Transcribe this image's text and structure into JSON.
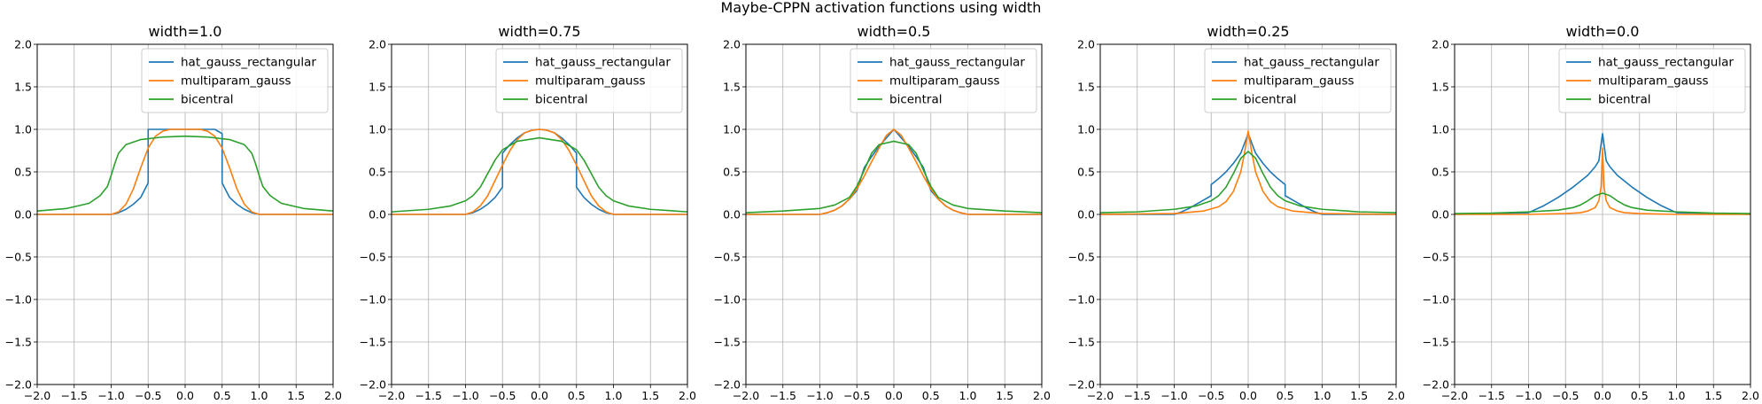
{
  "suptitle": "Maybe-CPPN activation functions using width",
  "colors": {
    "hat_gauss_rectangular": "#1f77b4",
    "multiparam_gauss": "#ff7f0e",
    "bicentral": "#2ca02c",
    "grid": "#b0b0b0",
    "axes": "#000000"
  },
  "chart_data": [
    {
      "type": "line",
      "title": "width=1.0",
      "xlim": [
        -2,
        2
      ],
      "ylim": [
        -2,
        2
      ],
      "xticks": [
        "−2.0",
        "−1.5",
        "−1.0",
        "−0.5",
        "0.0",
        "0.5",
        "1.0",
        "1.5",
        "2.0"
      ],
      "yticks": [
        "−2.0",
        "−1.5",
        "−1.0",
        "−0.5",
        "0.0",
        "0.5",
        "1.0",
        "1.5",
        "2.0"
      ],
      "grid": true,
      "legend": "top-right",
      "series": [
        {
          "name": "hat_gauss_rectangular",
          "x": [
            -2,
            -1.0,
            -0.9,
            -0.8,
            -0.7,
            -0.6,
            -0.5,
            -0.5,
            -0.4,
            -0.3,
            -0.2,
            -0.1,
            0,
            0.1,
            0.2,
            0.3,
            0.4,
            0.5,
            0.5,
            0.6,
            0.7,
            0.8,
            0.9,
            1.0,
            2
          ],
          "y": [
            0,
            0,
            0.02,
            0.06,
            0.12,
            0.2,
            0.37,
            1.0,
            1.0,
            1.0,
            1.0,
            1.0,
            1.0,
            1.0,
            1.0,
            1.0,
            1.0,
            0.95,
            0.37,
            0.2,
            0.12,
            0.06,
            0.02,
            0,
            0
          ]
        },
        {
          "name": "multiparam_gauss",
          "x": [
            -2,
            -1.0,
            -0.9,
            -0.8,
            -0.7,
            -0.6,
            -0.5,
            -0.4,
            -0.3,
            -0.2,
            -0.1,
            0,
            0.1,
            0.2,
            0.3,
            0.4,
            0.5,
            0.6,
            0.7,
            0.8,
            0.9,
            1.0,
            2
          ],
          "y": [
            0,
            0,
            0.03,
            0.12,
            0.3,
            0.55,
            0.78,
            0.92,
            0.98,
            1.0,
            1.0,
            1.0,
            1.0,
            1.0,
            0.98,
            0.92,
            0.78,
            0.55,
            0.3,
            0.12,
            0.03,
            0,
            0
          ]
        },
        {
          "name": "bicentral",
          "x": [
            -2,
            -1.6,
            -1.3,
            -1.15,
            -1.05,
            -1.0,
            -0.95,
            -0.9,
            -0.8,
            -0.6,
            -0.3,
            0,
            0.3,
            0.6,
            0.8,
            0.9,
            0.95,
            1.0,
            1.05,
            1.15,
            1.3,
            1.6,
            2
          ],
          "y": [
            0.04,
            0.07,
            0.13,
            0.22,
            0.33,
            0.46,
            0.6,
            0.72,
            0.82,
            0.88,
            0.91,
            0.92,
            0.91,
            0.88,
            0.82,
            0.72,
            0.6,
            0.46,
            0.33,
            0.22,
            0.13,
            0.07,
            0.04
          ]
        }
      ]
    },
    {
      "type": "line",
      "title": "width=0.75",
      "xlim": [
        -2,
        2
      ],
      "ylim": [
        -2,
        2
      ],
      "xticks": [
        "−2.0",
        "−1.5",
        "−1.0",
        "−0.5",
        "0.0",
        "0.5",
        "1.0",
        "1.5",
        "2.0"
      ],
      "yticks": [
        "−2.0",
        "−1.5",
        "−1.0",
        "−0.5",
        "0.0",
        "0.5",
        "1.0",
        "1.5",
        "2.0"
      ],
      "grid": true,
      "legend": "top-right",
      "series": [
        {
          "name": "hat_gauss_rectangular",
          "x": [
            -2,
            -1.0,
            -0.9,
            -0.8,
            -0.7,
            -0.6,
            -0.5,
            -0.5,
            -0.4,
            -0.3,
            -0.2,
            -0.1,
            0,
            0.1,
            0.2,
            0.3,
            0.4,
            0.5,
            0.5,
            0.6,
            0.7,
            0.8,
            0.9,
            1.0,
            2
          ],
          "y": [
            0,
            0,
            0.02,
            0.06,
            0.12,
            0.2,
            0.32,
            0.72,
            0.82,
            0.9,
            0.96,
            0.99,
            1.0,
            0.99,
            0.96,
            0.9,
            0.82,
            0.72,
            0.32,
            0.2,
            0.12,
            0.06,
            0.02,
            0,
            0
          ]
        },
        {
          "name": "multiparam_gauss",
          "x": [
            -2,
            -1.0,
            -0.9,
            -0.8,
            -0.7,
            -0.6,
            -0.5,
            -0.4,
            -0.3,
            -0.2,
            -0.1,
            0,
            0.1,
            0.2,
            0.3,
            0.4,
            0.5,
            0.6,
            0.7,
            0.8,
            0.9,
            1.0,
            2
          ],
          "y": [
            0,
            0,
            0.03,
            0.1,
            0.22,
            0.4,
            0.58,
            0.75,
            0.88,
            0.96,
            0.99,
            1.0,
            0.99,
            0.96,
            0.88,
            0.75,
            0.58,
            0.4,
            0.22,
            0.1,
            0.03,
            0,
            0
          ]
        },
        {
          "name": "bicentral",
          "x": [
            -2,
            -1.5,
            -1.2,
            -1.0,
            -0.9,
            -0.8,
            -0.7,
            -0.6,
            -0.5,
            -0.3,
            0,
            0.3,
            0.5,
            0.6,
            0.7,
            0.8,
            0.9,
            1.0,
            1.2,
            1.5,
            2
          ],
          "y": [
            0.03,
            0.06,
            0.1,
            0.16,
            0.22,
            0.32,
            0.48,
            0.64,
            0.76,
            0.86,
            0.9,
            0.86,
            0.76,
            0.64,
            0.48,
            0.32,
            0.22,
            0.16,
            0.1,
            0.06,
            0.03
          ]
        }
      ]
    },
    {
      "type": "line",
      "title": "width=0.5",
      "xlim": [
        -2,
        2
      ],
      "ylim": [
        -2,
        2
      ],
      "xticks": [
        "−2.0",
        "−1.5",
        "−1.0",
        "−0.5",
        "0.0",
        "0.5",
        "1.0",
        "1.5",
        "2.0"
      ],
      "yticks": [
        "−2.0",
        "−1.5",
        "−1.0",
        "−0.5",
        "0.0",
        "0.5",
        "1.0",
        "1.5",
        "2.0"
      ],
      "grid": true,
      "legend": "top-right",
      "series": [
        {
          "name": "hat_gauss_rectangular",
          "x": [
            -2,
            -1.0,
            -0.9,
            -0.8,
            -0.7,
            -0.6,
            -0.5,
            -0.4,
            -0.3,
            -0.2,
            -0.1,
            0,
            0.1,
            0.2,
            0.3,
            0.4,
            0.5,
            0.6,
            0.7,
            0.8,
            0.9,
            1.0,
            2
          ],
          "y": [
            0,
            0,
            0.02,
            0.05,
            0.1,
            0.18,
            0.28,
            0.55,
            0.68,
            0.8,
            0.9,
            1.0,
            0.9,
            0.8,
            0.68,
            0.55,
            0.28,
            0.18,
            0.1,
            0.05,
            0.02,
            0,
            0
          ]
        },
        {
          "name": "multiparam_gauss",
          "x": [
            -2,
            -1.0,
            -0.9,
            -0.8,
            -0.7,
            -0.6,
            -0.5,
            -0.4,
            -0.3,
            -0.2,
            -0.1,
            0,
            0.1,
            0.2,
            0.3,
            0.4,
            0.5,
            0.6,
            0.7,
            0.8,
            0.9,
            1.0,
            2
          ],
          "y": [
            0,
            0,
            0.02,
            0.05,
            0.1,
            0.18,
            0.3,
            0.45,
            0.62,
            0.78,
            0.93,
            1.0,
            0.93,
            0.78,
            0.62,
            0.45,
            0.3,
            0.18,
            0.1,
            0.05,
            0.02,
            0,
            0
          ]
        },
        {
          "name": "bicentral",
          "x": [
            -2,
            -1.5,
            -1.0,
            -0.8,
            -0.6,
            -0.5,
            -0.4,
            -0.3,
            -0.2,
            0,
            0.2,
            0.3,
            0.4,
            0.5,
            0.6,
            0.8,
            1.0,
            1.5,
            2
          ],
          "y": [
            0.02,
            0.04,
            0.07,
            0.11,
            0.2,
            0.33,
            0.52,
            0.72,
            0.82,
            0.86,
            0.82,
            0.72,
            0.52,
            0.33,
            0.2,
            0.11,
            0.07,
            0.04,
            0.02
          ]
        }
      ]
    },
    {
      "type": "line",
      "title": "width=0.25",
      "xlim": [
        -2,
        2
      ],
      "ylim": [
        -2,
        2
      ],
      "xticks": [
        "−2.0",
        "−1.5",
        "−1.0",
        "−0.5",
        "0.0",
        "0.5",
        "1.0",
        "1.5",
        "2.0"
      ],
      "yticks": [
        "−2.0",
        "−1.5",
        "−1.0",
        "−0.5",
        "0.0",
        "0.5",
        "1.0",
        "1.5",
        "2.0"
      ],
      "grid": true,
      "legend": "top-right",
      "series": [
        {
          "name": "hat_gauss_rectangular",
          "x": [
            -2,
            -1.0,
            -0.9,
            -0.8,
            -0.7,
            -0.6,
            -0.5,
            -0.5,
            -0.4,
            -0.3,
            -0.2,
            -0.1,
            0,
            0.1,
            0.2,
            0.3,
            0.4,
            0.5,
            0.5,
            0.6,
            0.7,
            0.8,
            0.9,
            1.0,
            2
          ],
          "y": [
            0,
            0,
            0.03,
            0.07,
            0.12,
            0.17,
            0.22,
            0.35,
            0.42,
            0.5,
            0.6,
            0.72,
            0.95,
            0.72,
            0.6,
            0.5,
            0.42,
            0.35,
            0.22,
            0.17,
            0.12,
            0.07,
            0.03,
            0,
            0
          ]
        },
        {
          "name": "multiparam_gauss",
          "x": [
            -2,
            -1.0,
            -0.6,
            -0.4,
            -0.3,
            -0.2,
            -0.1,
            -0.05,
            0,
            0.05,
            0.1,
            0.2,
            0.3,
            0.4,
            0.6,
            1.0,
            2
          ],
          "y": [
            0,
            0.01,
            0.04,
            0.09,
            0.15,
            0.27,
            0.5,
            0.72,
            0.98,
            0.72,
            0.5,
            0.27,
            0.15,
            0.09,
            0.04,
            0.01,
            0
          ]
        },
        {
          "name": "bicentral",
          "x": [
            -2,
            -1.5,
            -1.0,
            -0.7,
            -0.5,
            -0.4,
            -0.3,
            -0.2,
            -0.1,
            0,
            0.1,
            0.2,
            0.3,
            0.4,
            0.5,
            0.7,
            1.0,
            1.5,
            2
          ],
          "y": [
            0.02,
            0.03,
            0.06,
            0.1,
            0.16,
            0.22,
            0.32,
            0.48,
            0.66,
            0.74,
            0.66,
            0.48,
            0.32,
            0.22,
            0.16,
            0.1,
            0.06,
            0.03,
            0.02
          ]
        }
      ]
    },
    {
      "type": "line",
      "title": "width=0.0",
      "xlim": [
        -2,
        2
      ],
      "ylim": [
        -2,
        2
      ],
      "xticks": [
        "−2.0",
        "−1.5",
        "−1.0",
        "−0.5",
        "0.0",
        "0.5",
        "1.0",
        "1.5",
        "2.0"
      ],
      "yticks": [
        "−2.0",
        "−1.5",
        "−1.0",
        "−0.5",
        "0.0",
        "0.5",
        "1.0",
        "1.5",
        "2.0"
      ],
      "grid": true,
      "legend": "top-right",
      "series": [
        {
          "name": "hat_gauss_rectangular",
          "x": [
            -2,
            -1.0,
            -0.8,
            -0.6,
            -0.4,
            -0.2,
            -0.1,
            -0.05,
            0,
            0.05,
            0.1,
            0.2,
            0.4,
            0.6,
            0.8,
            1.0,
            2
          ],
          "y": [
            0,
            0.02,
            0.1,
            0.2,
            0.32,
            0.46,
            0.56,
            0.63,
            0.95,
            0.63,
            0.56,
            0.46,
            0.32,
            0.2,
            0.1,
            0.02,
            0
          ]
        },
        {
          "name": "multiparam_gauss",
          "x": [
            -2,
            -1.0,
            -0.5,
            -0.3,
            -0.2,
            -0.1,
            -0.05,
            -0.02,
            0,
            0.02,
            0.05,
            0.1,
            0.2,
            0.3,
            0.5,
            1.0,
            2
          ],
          "y": [
            0,
            0,
            0.01,
            0.02,
            0.04,
            0.08,
            0.16,
            0.32,
            0.78,
            0.32,
            0.16,
            0.08,
            0.04,
            0.02,
            0.01,
            0,
            0
          ]
        },
        {
          "name": "bicentral",
          "x": [
            -2,
            -1.5,
            -1.0,
            -0.6,
            -0.4,
            -0.3,
            -0.2,
            -0.1,
            0,
            0.1,
            0.2,
            0.3,
            0.4,
            0.6,
            1.0,
            1.5,
            2
          ],
          "y": [
            0.01,
            0.015,
            0.03,
            0.05,
            0.08,
            0.11,
            0.16,
            0.22,
            0.25,
            0.22,
            0.16,
            0.11,
            0.08,
            0.05,
            0.03,
            0.015,
            0.01
          ]
        }
      ]
    }
  ]
}
